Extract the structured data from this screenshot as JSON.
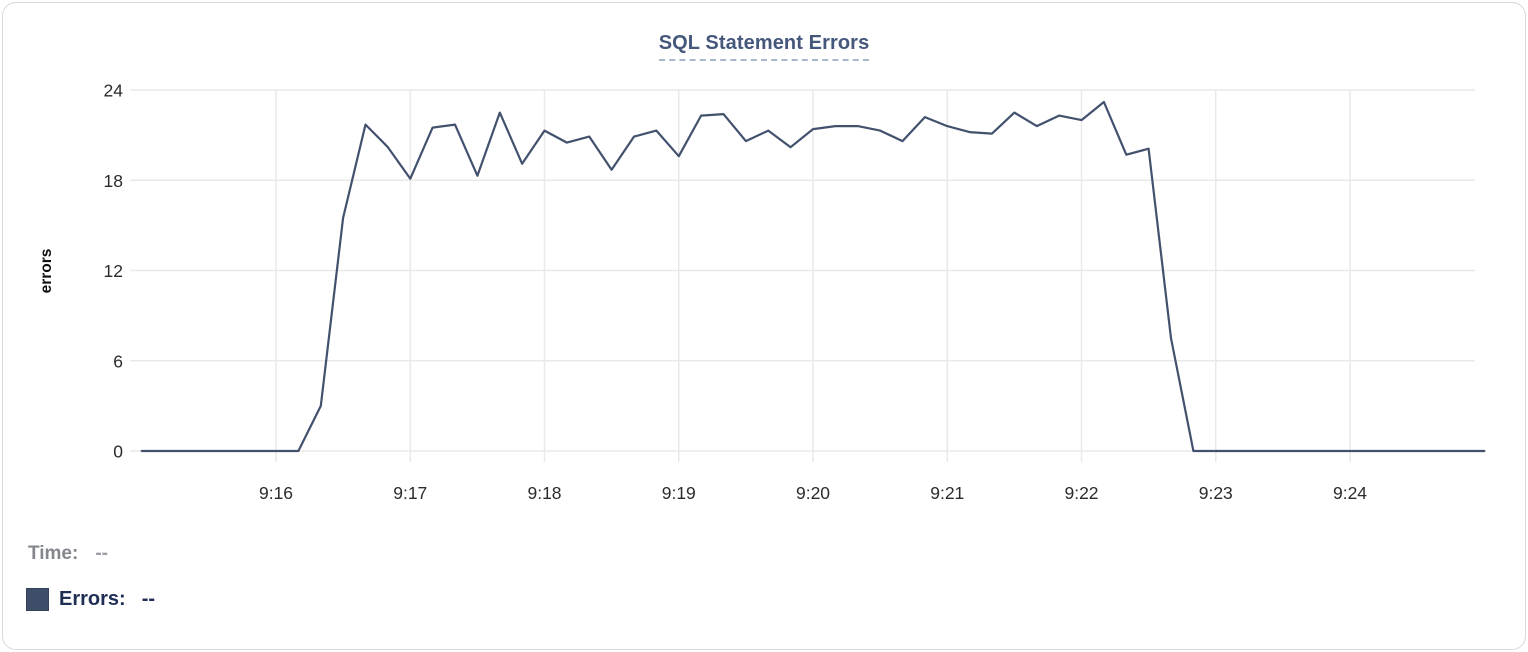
{
  "title": "SQL Statement Errors",
  "legend": {
    "time_label": "Time:",
    "time_value": "--",
    "errors_label": "Errors:",
    "errors_value": "--"
  },
  "colors": {
    "line": "#42516d",
    "swatch": "#3f4e68",
    "title": "#45587c",
    "title_underline": "#a9b6cc",
    "grid": "#e9e9e9",
    "tick_text": "#2b2b2b",
    "axis_title_text": "#0f0f0f",
    "time_label": "#83878d",
    "time_value": "#9a9da3",
    "errors_label": "#202e55",
    "card_border": "#d9d9d9"
  },
  "chart_data": {
    "type": "line",
    "title": "SQL Statement Errors",
    "xlabel": "",
    "ylabel": "errors",
    "grid": true,
    "legend_position": "none",
    "ylim": [
      0,
      24
    ],
    "y_ticks": [
      0,
      6,
      12,
      18,
      24
    ],
    "xlim": [
      "9:15:00",
      "9:25:00"
    ],
    "x_ticks": [
      "9:16",
      "9:17",
      "9:18",
      "9:19",
      "9:20",
      "9:21",
      "9:22",
      "9:23",
      "9:24"
    ],
    "series": [
      {
        "name": "Errors",
        "points": [
          [
            "9:15:00",
            0
          ],
          [
            "9:15:10",
            0
          ],
          [
            "9:15:20",
            0
          ],
          [
            "9:15:30",
            0
          ],
          [
            "9:15:40",
            0
          ],
          [
            "9:15:50",
            0
          ],
          [
            "9:16:00",
            0
          ],
          [
            "9:16:10",
            0
          ],
          [
            "9:16:20",
            3
          ],
          [
            "9:16:30",
            15.5
          ],
          [
            "9:16:40",
            21.7
          ],
          [
            "9:16:50",
            20.2
          ],
          [
            "9:17:00",
            18.1
          ],
          [
            "9:17:10",
            21.5
          ],
          [
            "9:17:20",
            21.7
          ],
          [
            "9:17:30",
            18.3
          ],
          [
            "9:17:40",
            22.5
          ],
          [
            "9:17:50",
            19.1
          ],
          [
            "9:18:00",
            21.3
          ],
          [
            "9:18:10",
            20.5
          ],
          [
            "9:18:20",
            20.9
          ],
          [
            "9:18:30",
            18.7
          ],
          [
            "9:18:40",
            20.9
          ],
          [
            "9:18:50",
            21.3
          ],
          [
            "9:19:00",
            19.6
          ],
          [
            "9:19:10",
            22.3
          ],
          [
            "9:19:20",
            22.4
          ],
          [
            "9:19:30",
            20.6
          ],
          [
            "9:19:40",
            21.3
          ],
          [
            "9:19:50",
            20.2
          ],
          [
            "9:20:00",
            21.4
          ],
          [
            "9:20:10",
            21.6
          ],
          [
            "9:20:20",
            21.6
          ],
          [
            "9:20:30",
            21.3
          ],
          [
            "9:20:40",
            20.6
          ],
          [
            "9:20:50",
            22.2
          ],
          [
            "9:21:00",
            21.6
          ],
          [
            "9:21:10",
            21.2
          ],
          [
            "9:21:20",
            21.1
          ],
          [
            "9:21:30",
            22.5
          ],
          [
            "9:21:40",
            21.6
          ],
          [
            "9:21:50",
            22.3
          ],
          [
            "9:22:00",
            22.0
          ],
          [
            "9:22:10",
            23.2
          ],
          [
            "9:22:20",
            19.7
          ],
          [
            "9:22:30",
            20.1
          ],
          [
            "9:22:40",
            7.5
          ],
          [
            "9:22:50",
            0
          ],
          [
            "9:23:00",
            0
          ],
          [
            "9:23:10",
            0
          ],
          [
            "9:23:20",
            0
          ],
          [
            "9:23:30",
            0
          ],
          [
            "9:23:40",
            0
          ],
          [
            "9:23:50",
            0
          ],
          [
            "9:24:00",
            0
          ],
          [
            "9:24:10",
            0
          ],
          [
            "9:24:20",
            0
          ],
          [
            "9:24:30",
            0
          ],
          [
            "9:24:40",
            0
          ],
          [
            "9:24:50",
            0
          ],
          [
            "9:25:00",
            0
          ]
        ]
      }
    ]
  }
}
